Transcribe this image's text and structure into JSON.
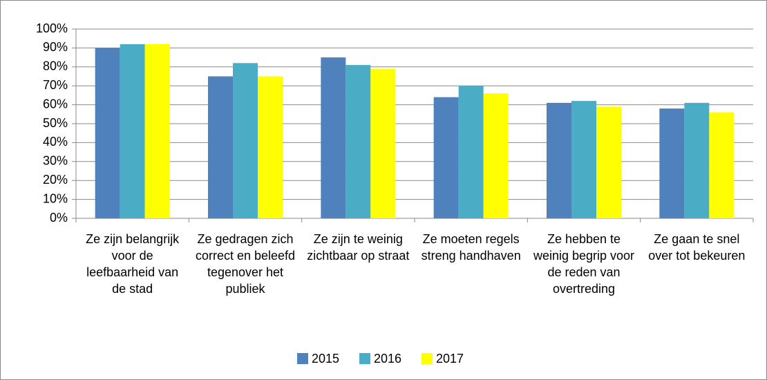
{
  "chart_data": {
    "type": "bar",
    "categories": [
      "Ze zijn belangrijk voor de leefbaarheid van de stad",
      "Ze gedragen zich correct en beleefd tegenover het publiek",
      "Ze zijn te weinig zichtbaar op straat",
      "Ze moeten regels streng handhaven",
      "Ze hebben te weinig begrip voor de reden van overtreding",
      "Ze gaan te snel over tot bekeuren"
    ],
    "series": [
      {
        "name": "2015",
        "color": "#4f81bd",
        "values": [
          90,
          75,
          85,
          64,
          61,
          58
        ]
      },
      {
        "name": "2016",
        "color": "#4bacc6",
        "values": [
          92,
          82,
          81,
          70,
          62,
          61
        ]
      },
      {
        "name": "2017",
        "color": "#ffff00",
        "values": [
          92,
          75,
          79,
          66,
          59,
          56
        ]
      }
    ],
    "ylim": [
      0,
      100
    ],
    "yticks": [
      {
        "value": 0,
        "label": "0%"
      },
      {
        "value": 10,
        "label": "10%"
      },
      {
        "value": 20,
        "label": "20%"
      },
      {
        "value": 30,
        "label": "30%"
      },
      {
        "value": 40,
        "label": "40%"
      },
      {
        "value": 50,
        "label": "50%"
      },
      {
        "value": 60,
        "label": "60%"
      },
      {
        "value": 70,
        "label": "70%"
      },
      {
        "value": 80,
        "label": "80%"
      },
      {
        "value": 90,
        "label": "90%"
      },
      {
        "value": 100,
        "label": "100%"
      }
    ],
    "grid": true,
    "legend": "bottom"
  }
}
